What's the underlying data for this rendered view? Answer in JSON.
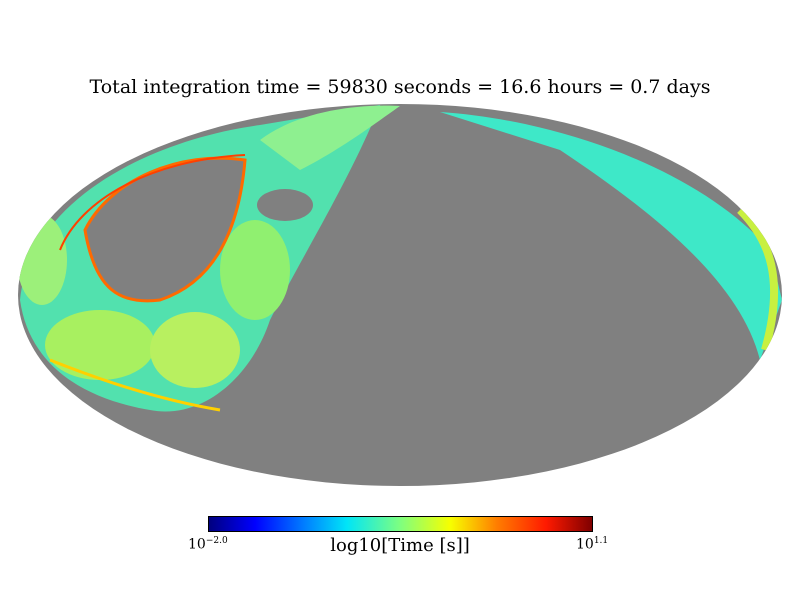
{
  "chart_data": {
    "type": "heatmap",
    "projection": "mollweide",
    "title": "Total integration time = 59830 seconds = 16.6 hours = 0.7 days",
    "colorbar": {
      "label": "log10[Time [s]]",
      "min_base": "10",
      "min_exp": "−2.0",
      "max_base": "10",
      "max_exp": "1.1",
      "range": [
        -2.0,
        1.1
      ],
      "colormap": "jet"
    },
    "background_color": "#808080"
  }
}
